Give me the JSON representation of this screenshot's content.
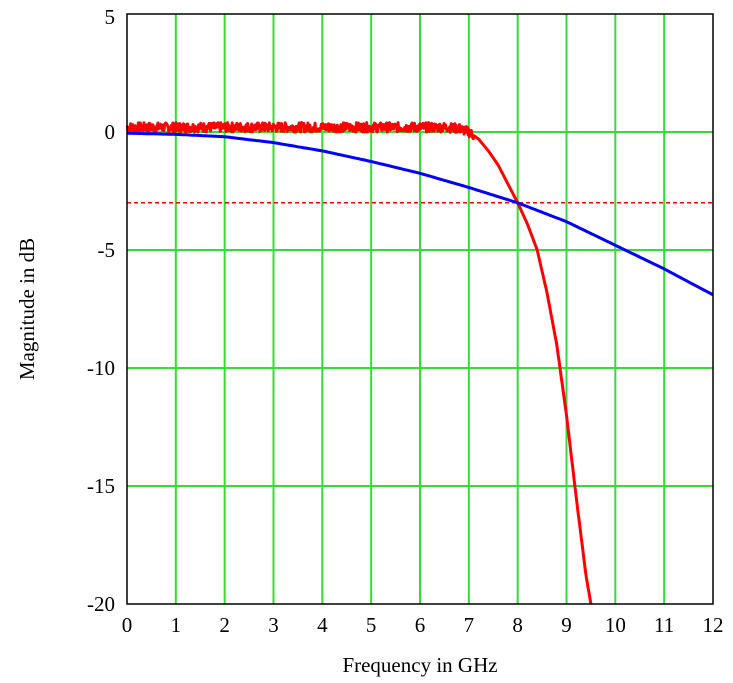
{
  "chart_data": {
    "type": "line",
    "title": "",
    "xlabel": "Frequency in GHz",
    "ylabel": "Magnitude in dB",
    "xlim": [
      0,
      12
    ],
    "ylim": [
      -20,
      5
    ],
    "x_ticks": [
      0,
      1,
      2,
      3,
      4,
      5,
      6,
      7,
      8,
      9,
      10,
      11,
      12
    ],
    "y_ticks": [
      5,
      0,
      -5,
      -10,
      -15,
      -20
    ],
    "x_tick_labels": [
      "0",
      "1",
      "2",
      "3",
      "4",
      "5",
      "6",
      "7",
      "8",
      "9",
      "10",
      "11",
      "12"
    ],
    "y_tick_labels": [
      "5",
      "0",
      "-5",
      "-10",
      "-15",
      "-20"
    ],
    "grid": true,
    "grid_color": "#33dd33",
    "background": "#ffffff",
    "series": [
      {
        "color": "#ff0000",
        "noisy": true,
        "x": [
          0,
          1,
          2,
          3,
          4,
          5,
          6,
          6.5,
          6.8,
          7.0,
          7.2,
          7.4,
          7.6,
          7.8,
          8.0,
          8.2,
          8.4,
          8.6,
          8.8,
          9.0,
          9.2,
          9.4,
          9.5
        ],
        "y": [
          0.2,
          0.2,
          0.2,
          0.2,
          0.2,
          0.2,
          0.2,
          0.2,
          0.15,
          0.0,
          -0.3,
          -0.8,
          -1.4,
          -2.2,
          -3.0,
          -3.9,
          -5.0,
          -6.8,
          -9.0,
          -12.0,
          -15.5,
          -18.8,
          -20
        ]
      },
      {
        "color": "#0000ff",
        "noisy": false,
        "x": [
          0,
          1,
          2,
          3,
          4,
          5,
          6,
          7,
          8,
          9,
          10,
          11,
          12
        ],
        "y": [
          -0.05,
          -0.1,
          -0.2,
          -0.45,
          -0.8,
          -1.25,
          -1.75,
          -2.35,
          -3.0,
          -3.8,
          -4.8,
          -5.8,
          -6.9
        ]
      }
    ],
    "reference_line": {
      "y": -3,
      "color": "#ff0000",
      "style": "dashed"
    }
  }
}
